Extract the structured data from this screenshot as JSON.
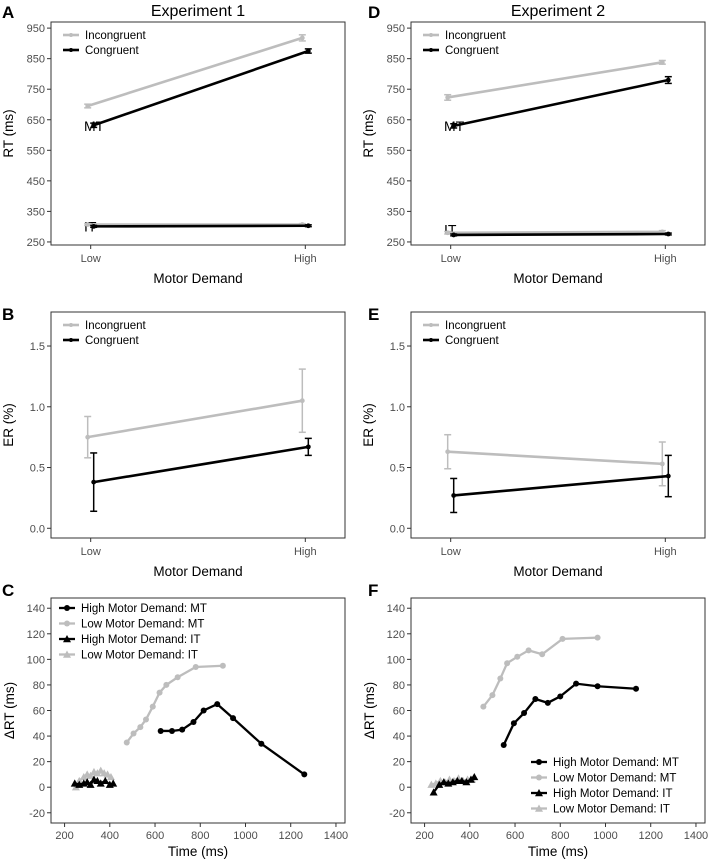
{
  "figure": {
    "colors": {
      "incongruent": "#bdbdbd",
      "congruent": "#000000",
      "low": "#bdbdbd",
      "high": "#000000"
    },
    "experiments": [
      "Experiment 1",
      "Experiment 2"
    ]
  },
  "chart_data": [
    {
      "id": "A",
      "letter": "A",
      "type": "line",
      "title": "Experiment 1",
      "xlabel": "Motor Demand",
      "ylabel": "RT (ms)",
      "categories": [
        "Low",
        "High"
      ],
      "ylim": [
        240,
        970
      ],
      "yticks": [
        250,
        350,
        450,
        550,
        650,
        750,
        850,
        950
      ],
      "legend": [
        "Incongruent",
        "Congruent"
      ],
      "annotations": [
        {
          "text": "MT",
          "y": 630,
          "pos": "left"
        },
        {
          "text": "IT",
          "y": 300,
          "pos": "left"
        }
      ],
      "series": [
        {
          "name": "Incongruent",
          "group": "MT",
          "values": [
            695,
            918
          ],
          "err": [
            6,
            10
          ]
        },
        {
          "name": "Congruent",
          "group": "MT",
          "values": [
            632,
            875
          ],
          "err": [
            7,
            7
          ]
        },
        {
          "name": "Incongruent",
          "group": "IT",
          "values": [
            307,
            307
          ],
          "err": [
            3,
            3
          ]
        },
        {
          "name": "Congruent",
          "group": "IT",
          "values": [
            301,
            303
          ],
          "err": [
            3,
            3
          ]
        }
      ]
    },
    {
      "id": "D",
      "letter": "D",
      "type": "line",
      "title": "Experiment 2",
      "xlabel": "Motor Demand",
      "ylabel": "RT (ms)",
      "categories": [
        "Low",
        "High"
      ],
      "ylim": [
        240,
        970
      ],
      "yticks": [
        250,
        350,
        450,
        550,
        650,
        750,
        850,
        950
      ],
      "legend": [
        "Incongruent",
        "Congruent"
      ],
      "annotations": [
        {
          "text": "MT",
          "y": 630,
          "pos": "left"
        },
        {
          "text": "IT",
          "y": 290,
          "pos": "left"
        }
      ],
      "series": [
        {
          "name": "Incongruent",
          "group": "MT",
          "values": [
            723,
            838
          ],
          "err": [
            9,
            6
          ]
        },
        {
          "name": "Congruent",
          "group": "MT",
          "values": [
            630,
            780
          ],
          "err": [
            7,
            11
          ]
        },
        {
          "name": "Incongruent",
          "group": "IT",
          "values": [
            280,
            283
          ],
          "err": [
            4,
            4
          ]
        },
        {
          "name": "Congruent",
          "group": "IT",
          "values": [
            273,
            276
          ],
          "err": [
            3,
            3
          ]
        }
      ]
    },
    {
      "id": "B",
      "letter": "B",
      "type": "line",
      "xlabel": "Motor Demand",
      "ylabel": "ER (%)",
      "categories": [
        "Low",
        "High"
      ],
      "ylim": [
        -0.08,
        1.78
      ],
      "yticks": [
        0.0,
        0.5,
        1.0,
        1.5
      ],
      "ytick_labels": [
        "0.0",
        "0.5",
        "1.0",
        "1.5"
      ],
      "legend": [
        "Incongruent",
        "Congruent"
      ],
      "series": [
        {
          "name": "Incongruent",
          "values": [
            0.75,
            1.05
          ],
          "err": [
            0.17,
            0.26
          ]
        },
        {
          "name": "Congruent",
          "values": [
            0.38,
            0.67
          ],
          "err": [
            0.24,
            0.07
          ]
        }
      ]
    },
    {
      "id": "E",
      "letter": "E",
      "type": "line",
      "xlabel": "Motor Demand",
      "ylabel": "ER (%)",
      "categories": [
        "Low",
        "High"
      ],
      "ylim": [
        -0.08,
        1.78
      ],
      "yticks": [
        0.0,
        0.5,
        1.0,
        1.5
      ],
      "ytick_labels": [
        "0.0",
        "0.5",
        "1.0",
        "1.5"
      ],
      "legend": [
        "Incongruent",
        "Congruent"
      ],
      "series": [
        {
          "name": "Incongruent",
          "values": [
            0.63,
            0.53
          ],
          "err": [
            0.14,
            0.18
          ]
        },
        {
          "name": "Congruent",
          "values": [
            0.27,
            0.43
          ],
          "err": [
            0.14,
            0.17
          ]
        }
      ]
    },
    {
      "id": "C",
      "letter": "C",
      "type": "line",
      "xlabel": "Time (ms)",
      "ylabel": "ΔRT (ms)",
      "xlim": [
        140,
        1440
      ],
      "xticks": [
        200,
        400,
        600,
        800,
        1000,
        1200,
        1400
      ],
      "ylim": [
        -28,
        148
      ],
      "yticks": [
        -20,
        0,
        20,
        40,
        60,
        80,
        100,
        120,
        140
      ],
      "legend_position": "top-left",
      "legend": [
        "High Motor Demand: MT",
        "Low Motor Demand: MT",
        "High Motor Demand: IT",
        "Low Motor Demand: IT"
      ],
      "series": [
        {
          "name": "High Motor Demand: MT",
          "marker": "circle",
          "color": "high",
          "x": [
            625,
            675,
            720,
            770,
            815,
            875,
            945,
            1070,
            1260
          ],
          "y": [
            44,
            44,
            45,
            51,
            60,
            65,
            54,
            34,
            10
          ]
        },
        {
          "name": "Low Motor Demand: MT",
          "marker": "circle",
          "color": "low",
          "x": [
            475,
            505,
            535,
            560,
            590,
            620,
            650,
            700,
            780,
            900
          ],
          "y": [
            35,
            42,
            47,
            53,
            63,
            74,
            80,
            86,
            94,
            95
          ]
        },
        {
          "name": "High Motor Demand: IT",
          "marker": "triangle",
          "color": "high",
          "x": [
            245,
            265,
            285,
            300,
            315,
            330,
            345,
            360,
            380,
            400,
            415
          ],
          "y": [
            3,
            2,
            3,
            4,
            2,
            6,
            5,
            3,
            5,
            2,
            3
          ]
        },
        {
          "name": "Low Motor Demand: IT",
          "marker": "triangle",
          "color": "low",
          "x": [
            250,
            265,
            285,
            300,
            315,
            330,
            345,
            360,
            375,
            390,
            405
          ],
          "y": [
            0,
            5,
            8,
            10,
            9,
            12,
            11,
            13,
            11,
            10,
            8
          ]
        }
      ]
    },
    {
      "id": "F",
      "letter": "F",
      "type": "line",
      "xlabel": "Time (ms)",
      "ylabel": "ΔRT (ms)",
      "xlim": [
        140,
        1440
      ],
      "xticks": [
        200,
        400,
        600,
        800,
        1000,
        1200,
        1400
      ],
      "ylim": [
        -28,
        148
      ],
      "yticks": [
        -20,
        0,
        20,
        40,
        60,
        80,
        100,
        120,
        140
      ],
      "legend_position": "bottom-right",
      "legend": [
        "High Motor Demand: MT",
        "Low Motor Demand: MT",
        "High Motor Demand: IT",
        "Low Motor Demand: IT"
      ],
      "series": [
        {
          "name": "High Motor Demand: MT",
          "marker": "circle",
          "color": "high",
          "x": [
            550,
            595,
            640,
            690,
            745,
            800,
            870,
            965,
            1135
          ],
          "y": [
            33,
            50,
            58,
            69,
            66,
            71,
            81,
            79,
            77
          ]
        },
        {
          "name": "Low Motor Demand: MT",
          "marker": "circle",
          "color": "low",
          "x": [
            460,
            500,
            535,
            565,
            610,
            660,
            720,
            810,
            965
          ],
          "y": [
            63,
            72,
            85,
            97,
            102,
            107,
            104,
            116,
            117
          ]
        },
        {
          "name": "High Motor Demand: IT",
          "marker": "triangle",
          "color": "high",
          "x": [
            240,
            265,
            285,
            305,
            325,
            345,
            365,
            385,
            405,
            420
          ],
          "y": [
            -4,
            2,
            4,
            3,
            4,
            5,
            5,
            4,
            6,
            8
          ]
        },
        {
          "name": "Low Motor Demand: IT",
          "marker": "triangle",
          "color": "low",
          "x": [
            230,
            250,
            270,
            290,
            310,
            330,
            350,
            370,
            390,
            410
          ],
          "y": [
            2,
            3,
            5,
            4,
            6,
            5,
            7,
            5,
            6,
            6
          ]
        }
      ]
    }
  ]
}
